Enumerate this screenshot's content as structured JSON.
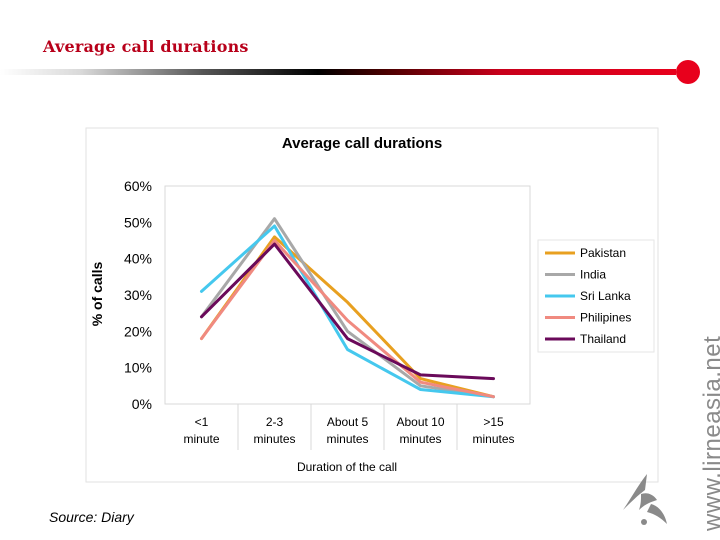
{
  "slide": {
    "title": "Average call durations",
    "source": "Source: Diary",
    "watermark": "www.lirneasia.net",
    "accent_color": "#e8001c"
  },
  "chart_data": {
    "type": "line",
    "title": "Average call durations",
    "xlabel": "Duration of the call",
    "ylabel": "% of calls",
    "categories": [
      "<1 minute",
      "2-3 minutes",
      "About 5 minutes",
      "About 10 minutes",
      ">15 minutes"
    ],
    "ylim": [
      0,
      60
    ],
    "yticks": [
      0,
      10,
      20,
      30,
      40,
      50,
      60
    ],
    "ytick_labels": [
      "0%",
      "10%",
      "20%",
      "30%",
      "40%",
      "50%",
      "60%"
    ],
    "legend_position": "right",
    "series": [
      {
        "name": "Pakistan",
        "color": "#e8a020",
        "values": [
          18,
          46,
          28,
          7,
          2
        ]
      },
      {
        "name": "India",
        "color": "#a8a8a8",
        "values": [
          24,
          51,
          20,
          5,
          2
        ]
      },
      {
        "name": "Sri Lanka",
        "color": "#45c8ee",
        "values": [
          31,
          49,
          15,
          4,
          2
        ]
      },
      {
        "name": "Philipines",
        "color": "#f08a80",
        "values": [
          18,
          45,
          23,
          6,
          2
        ]
      },
      {
        "name": "Thailand",
        "color": "#6a0a5a",
        "values": [
          24,
          44,
          18,
          8,
          7
        ]
      }
    ]
  }
}
